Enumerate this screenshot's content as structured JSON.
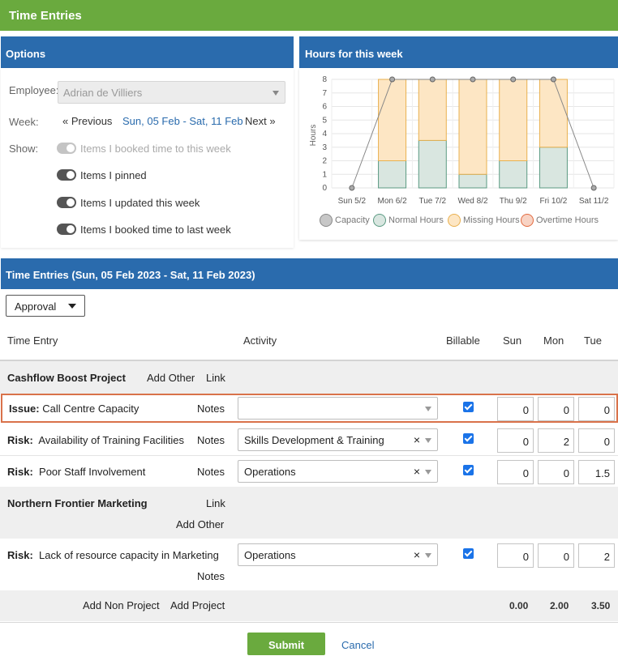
{
  "app": {
    "title": "Time Entries"
  },
  "options": {
    "header": "Options",
    "employee_label": "Employee:",
    "employee_value": "Adrian de Villiers",
    "week_label": "Week:",
    "prev_label": "« Previous",
    "week_range": "Sun, 05 Feb - Sat, 11 Feb",
    "next_label": "Next »",
    "show_label": "Show:",
    "toggles": [
      {
        "label": "Items I booked time to this week",
        "enabled": false
      },
      {
        "label": "Items I pinned",
        "enabled": true
      },
      {
        "label": "Items I updated this week",
        "enabled": true
      },
      {
        "label": "Items I booked time to last week",
        "enabled": true
      }
    ]
  },
  "hours": {
    "header": "Hours for this week",
    "ylabel": "Hours",
    "legend": [
      "Capacity",
      "Normal Hours",
      "Missing Hours",
      "Overtime Hours"
    ]
  },
  "chart_data": {
    "type": "bar",
    "categories": [
      "Sun 5/2",
      "Mon 6/2",
      "Tue 7/2",
      "Wed 8/2",
      "Thu 9/2",
      "Fri 10/2",
      "Sat 11/2"
    ],
    "series": [
      {
        "name": "Normal Hours",
        "values": [
          0,
          2,
          3.5,
          1,
          2,
          3,
          0
        ]
      },
      {
        "name": "Missing Hours",
        "values": [
          0,
          6,
          4.5,
          7,
          6,
          5,
          0
        ]
      },
      {
        "name": "Overtime Hours",
        "values": [
          0,
          0,
          0,
          0,
          0,
          0,
          0
        ]
      },
      {
        "name": "Capacity",
        "type": "line",
        "values": [
          0,
          8,
          8,
          8,
          8,
          8,
          0
        ]
      }
    ],
    "ylabel": "Hours",
    "ylim": [
      0,
      8
    ],
    "yticks": [
      0,
      1,
      2,
      3,
      4,
      5,
      6,
      7,
      8
    ],
    "grid": true,
    "legend_position": "bottom",
    "colors": {
      "normal": "#d9e6e0",
      "normal_stroke": "#5a9a82",
      "missing": "#fde6c4",
      "missing_stroke": "#e9b04f",
      "overtime": "#f8d3c4",
      "overtime_stroke": "#e26a3f",
      "capacity": "#888888"
    }
  },
  "entries": {
    "header": "Time Entries (Sun, 05 Feb 2023 - Sat, 11 Feb 2023)",
    "approval_label": "Approval",
    "columns": {
      "time_entry": "Time Entry",
      "activity": "Activity",
      "billable": "Billable",
      "sun": "Sun",
      "mon": "Mon",
      "tue": "Tue"
    },
    "groups": [
      {
        "name": "Cashflow Boost Project",
        "add_other": "Add Other",
        "link": "Link",
        "rows": [
          {
            "type": "Issue:",
            "title": "Call Centre Capacity",
            "notes": "Notes",
            "activity": "",
            "billable": true,
            "sun": "0",
            "mon": "0",
            "tue": "0"
          },
          {
            "type": "Risk:",
            "title": "Availability of Training Facilities",
            "notes": "Notes",
            "activity": "Skills Development & Training",
            "billable": true,
            "sun": "0",
            "mon": "2",
            "tue": "0"
          },
          {
            "type": "Risk:",
            "title": "Poor Staff Involvement",
            "notes": "Notes",
            "activity": "Operations",
            "billable": true,
            "sun": "0",
            "mon": "0",
            "tue": "1.5"
          }
        ]
      },
      {
        "name": "Northern Frontier Marketing",
        "link": "Link",
        "add_other": "Add Other",
        "rows": [
          {
            "type": "Risk:",
            "title": "Lack of resource capacity in Marketing",
            "notes": "Notes",
            "activity": "Operations",
            "billable": true,
            "sun": "0",
            "mon": "0",
            "tue": "2"
          }
        ]
      }
    ],
    "add_non_project": "Add Non Project",
    "add_project": "Add Project",
    "totals": {
      "sun": "0.00",
      "mon": "2.00",
      "tue": "3.50"
    },
    "submit_label": "Submit",
    "cancel_label": "Cancel"
  }
}
